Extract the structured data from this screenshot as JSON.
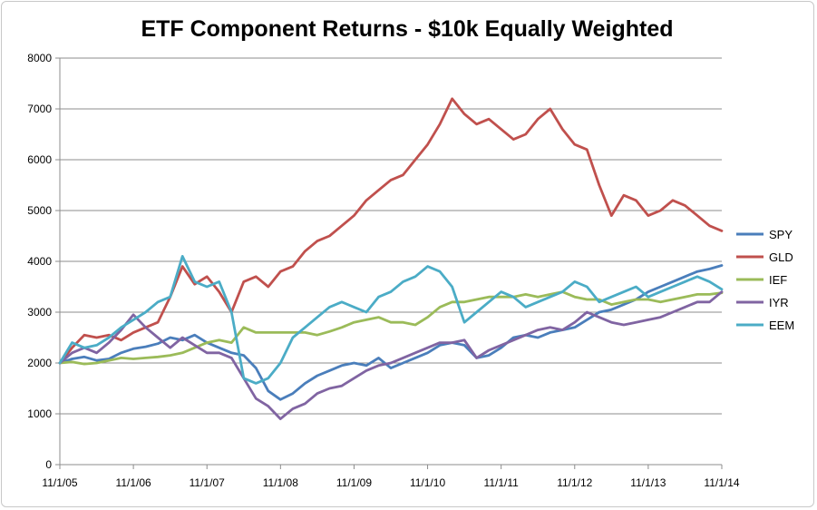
{
  "chart_data": {
    "type": "line",
    "title": "ETF Component Returns - $10k Equally Weighted",
    "xlabel": "",
    "ylabel": "",
    "ylim": [
      0,
      8000
    ],
    "y_ticks": [
      0,
      1000,
      2000,
      3000,
      4000,
      5000,
      6000,
      7000,
      8000
    ],
    "x_range": [
      "11/1/05",
      "11/1/14"
    ],
    "x_tick_labels": [
      "11/1/05",
      "11/1/06",
      "11/1/07",
      "11/1/08",
      "11/1/09",
      "11/1/10",
      "11/1/11",
      "11/1/12",
      "11/1/13",
      "11/1/14"
    ],
    "grid": "horizontal",
    "legend_position": "right",
    "x": [
      "Nov 2005",
      "Jan 2006",
      "Mar 2006",
      "May 2006",
      "Jul 2006",
      "Sep 2006",
      "Nov 2006",
      "Jan 2007",
      "Mar 2007",
      "May 2007",
      "Jul 2007",
      "Sep 2007",
      "Nov 2007",
      "Jan 2008",
      "Mar 2008",
      "May 2008",
      "Jul 2008",
      "Sep 2008",
      "Nov 2008",
      "Jan 2009",
      "Mar 2009",
      "May 2009",
      "Jul 2009",
      "Sep 2009",
      "Nov 2009",
      "Jan 2010",
      "Mar 2010",
      "May 2010",
      "Jul 2010",
      "Sep 2010",
      "Nov 2010",
      "Jan 2011",
      "Mar 2011",
      "May 2011",
      "Jul 2011",
      "Sep 2011",
      "Nov 2011",
      "Jan 2012",
      "Mar 2012",
      "May 2012",
      "Jul 2012",
      "Sep 2012",
      "Nov 2012",
      "Jan 2013",
      "Mar 2013",
      "May 2013",
      "Jul 2013",
      "Sep 2013",
      "Nov 2013",
      "Jan 2014",
      "Mar 2014",
      "May 2014",
      "Jul 2014",
      "Sep 2014",
      "Nov 2014"
    ],
    "series": [
      {
        "name": "SPY",
        "color": "#4a7ebb",
        "values": [
          2000,
          2080,
          2120,
          2050,
          2080,
          2200,
          2280,
          2320,
          2380,
          2500,
          2450,
          2550,
          2400,
          2300,
          2200,
          2150,
          1900,
          1450,
          1280,
          1400,
          1600,
          1750,
          1850,
          1950,
          2000,
          1950,
          2100,
          1900,
          2000,
          2100,
          2200,
          2350,
          2400,
          2350,
          2100,
          2150,
          2300,
          2500,
          2550,
          2500,
          2600,
          2650,
          2700,
          2850,
          3000,
          3050,
          3150,
          3250,
          3400,
          3500,
          3600,
          3700,
          3800,
          3850,
          3920
        ]
      },
      {
        "name": "GLD",
        "color": "#c0504d",
        "values": [
          2000,
          2300,
          2550,
          2500,
          2550,
          2450,
          2600,
          2700,
          2800,
          3300,
          3900,
          3550,
          3700,
          3400,
          3000,
          3600,
          3700,
          3500,
          3800,
          3900,
          4200,
          4400,
          4500,
          4700,
          4900,
          5200,
          5400,
          5600,
          5700,
          6000,
          6300,
          6700,
          7200,
          6900,
          6700,
          6800,
          6600,
          6400,
          6500,
          6800,
          7000,
          6600,
          6300,
          6200,
          5500,
          4900,
          5300,
          5200,
          4900,
          5000,
          5200,
          5100,
          4900,
          4700,
          4600
        ]
      },
      {
        "name": "IEF",
        "color": "#9bbb59",
        "values": [
          2000,
          2020,
          1980,
          2000,
          2050,
          2100,
          2080,
          2100,
          2120,
          2150,
          2200,
          2300,
          2400,
          2450,
          2400,
          2700,
          2600,
          2600,
          2600,
          2600,
          2600,
          2550,
          2620,
          2700,
          2800,
          2850,
          2900,
          2800,
          2800,
          2750,
          2900,
          3100,
          3200,
          3200,
          3250,
          3300,
          3300,
          3300,
          3350,
          3300,
          3350,
          3400,
          3300,
          3250,
          3250,
          3150,
          3200,
          3250,
          3250,
          3200,
          3250,
          3300,
          3350,
          3350,
          3380
        ]
      },
      {
        "name": "IYR",
        "color": "#8064a2",
        "values": [
          2000,
          2200,
          2300,
          2200,
          2400,
          2650,
          2950,
          2700,
          2500,
          2300,
          2500,
          2350,
          2200,
          2200,
          2100,
          1700,
          1300,
          1150,
          900,
          1100,
          1200,
          1400,
          1500,
          1550,
          1700,
          1850,
          1950,
          2000,
          2100,
          2200,
          2300,
          2400,
          2400,
          2450,
          2100,
          2250,
          2350,
          2450,
          2550,
          2650,
          2700,
          2650,
          2800,
          3000,
          2900,
          2800,
          2750,
          2800,
          2850,
          2900,
          3000,
          3100,
          3200,
          3200,
          3400
        ]
      },
      {
        "name": "EEM",
        "color": "#4bacc6",
        "values": [
          2000,
          2400,
          2300,
          2350,
          2500,
          2700,
          2850,
          3000,
          3200,
          3300,
          4100,
          3600,
          3500,
          3600,
          3000,
          1700,
          1600,
          1700,
          2000,
          2500,
          2700,
          2900,
          3100,
          3200,
          3100,
          3000,
          3300,
          3400,
          3600,
          3700,
          3900,
          3800,
          3500,
          2800,
          3000,
          3200,
          3400,
          3300,
          3100,
          3200,
          3300,
          3400,
          3600,
          3500,
          3200,
          3300,
          3400,
          3500,
          3300,
          3400,
          3500,
          3600,
          3700,
          3600,
          3450
        ]
      }
    ]
  }
}
